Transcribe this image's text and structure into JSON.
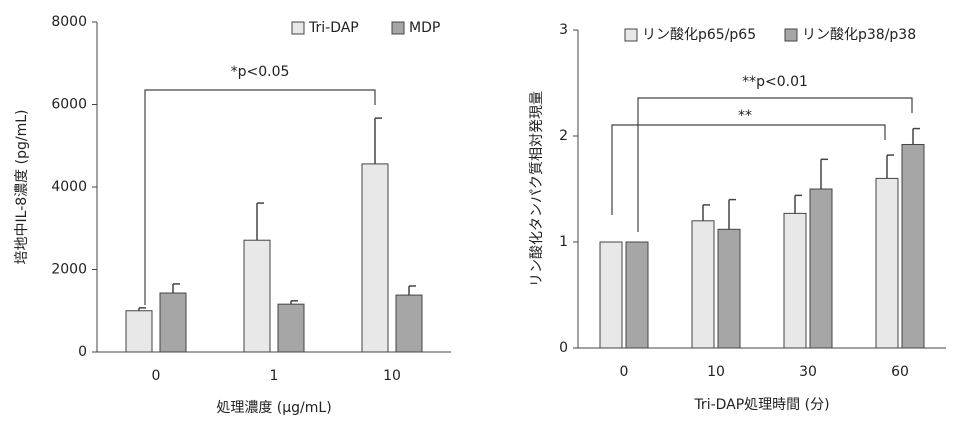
{
  "chart_data": [
    {
      "type": "bar",
      "categories": [
        "0",
        "1",
        "10"
      ],
      "series": [
        {
          "name": "Tri-DAP",
          "color": "#e8e8e8",
          "values": [
            1000,
            2710,
            4560
          ],
          "errors": [
            70,
            900,
            1110
          ]
        },
        {
          "name": "MDP",
          "color": "#a6a6a6",
          "values": [
            1430,
            1160,
            1380
          ],
          "errors": [
            220,
            80,
            220
          ]
        }
      ],
      "ylim": [
        0,
        8000
      ],
      "yticks": [
        0,
        2000,
        4000,
        6000,
        8000
      ],
      "y_label": "培地中IL-8濃度 (pg/mL)",
      "x_label": "処理濃度 (μg/mL)",
      "annotations": [
        {
          "text": "*p<0.05"
        }
      ]
    },
    {
      "type": "bar",
      "categories": [
        "0",
        "10",
        "30",
        "60"
      ],
      "series": [
        {
          "name": "リン酸化p65/p65",
          "color": "#e8e8e8",
          "values": [
            1,
            1.2,
            1.27,
            1.6
          ],
          "errors": [
            null,
            0.15,
            0.17,
            0.22
          ]
        },
        {
          "name": "リン酸化p38/p38",
          "color": "#a6a6a6",
          "values": [
            1,
            1.12,
            1.5,
            1.92
          ],
          "errors": [
            null,
            0.28,
            0.28,
            0.15
          ]
        }
      ],
      "ylim": [
        0,
        3
      ],
      "yticks": [
        0,
        1,
        2,
        3
      ],
      "y_label": "リン酸化タンパク質相対発現量",
      "x_label": "Tri-DAP処理時間 (分)",
      "annotations": [
        {
          "text": "**p<0.01"
        },
        {
          "text": "**"
        }
      ]
    }
  ]
}
